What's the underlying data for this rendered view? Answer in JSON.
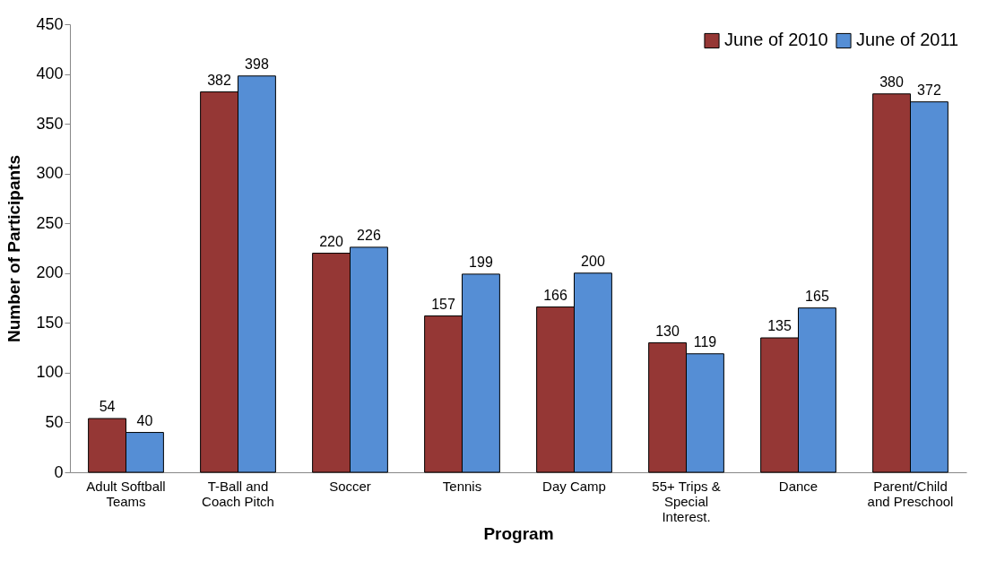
{
  "chart_data": {
    "type": "bar",
    "xlabel": "Program",
    "ylabel": "Number of Participants",
    "categories": [
      "Adult Softball Teams",
      "T-Ball and Coach Pitch",
      "Soccer",
      "Tennis",
      "Day Camp",
      "55+ Trips & Special Interest.",
      "Dance",
      "Parent/Child and Preschool"
    ],
    "series": [
      {
        "name": "June of 2010",
        "color": "#953735",
        "values": [
          54,
          382,
          220,
          157,
          166,
          130,
          135,
          380
        ]
      },
      {
        "name": "June of 2011",
        "color": "#558ed5",
        "values": [
          40,
          398,
          226,
          199,
          200,
          119,
          165,
          372
        ]
      }
    ],
    "ylim": [
      0,
      450
    ],
    "yticks": [
      0,
      50,
      100,
      150,
      200,
      250,
      300,
      350,
      400,
      450
    ],
    "data_labels": true,
    "legend": "top right",
    "grid": false
  }
}
